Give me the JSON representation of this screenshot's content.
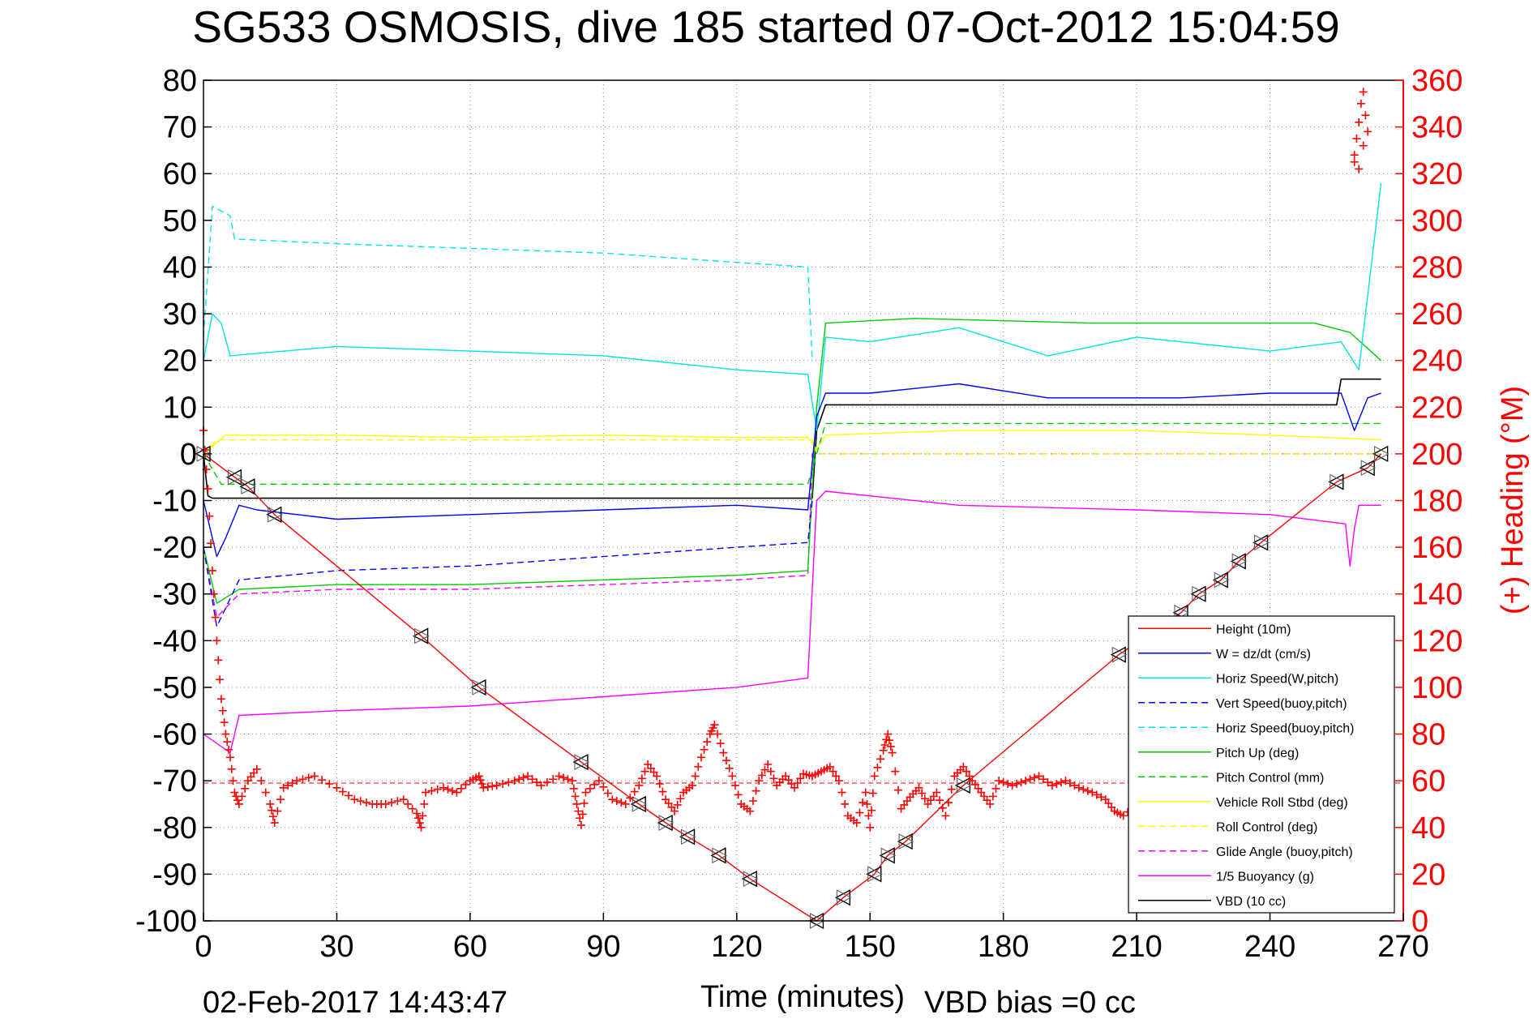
{
  "chart_data": {
    "type": "line",
    "title": "SG533 OSMOSIS, dive 185 started 07-Oct-2012 15:04:59",
    "xlabel": "Time (minutes)",
    "ylabel_right": "(+) Heading (°M)",
    "footer_date": "02-Feb-2017 14:43:47",
    "footer_bias": "VBD bias =0 cc",
    "xlim": [
      0,
      270
    ],
    "ylim": [
      -100,
      80
    ],
    "ylim_right": [
      0,
      360
    ],
    "x_ticks": [
      0,
      30,
      60,
      90,
      120,
      150,
      180,
      210,
      240,
      270
    ],
    "y_ticks": [
      80,
      70,
      60,
      50,
      40,
      30,
      20,
      10,
      0,
      -10,
      -20,
      -30,
      -40,
      -50,
      -60,
      -70,
      -80,
      -90,
      -100
    ],
    "y_ticks_right": [
      360,
      340,
      320,
      300,
      280,
      260,
      240,
      220,
      200,
      180,
      160,
      140,
      120,
      100,
      80,
      60,
      40,
      20,
      0
    ],
    "grid": true,
    "legend_position": "bottom-right",
    "series": [
      {
        "name": "Height (10m)",
        "color": "#ff0000",
        "style": "solid",
        "x": [
          0,
          7,
          10,
          16,
          49,
          62,
          85,
          98,
          104,
          109,
          116,
          123,
          138,
          144,
          151,
          154,
          158,
          171,
          206,
          220,
          224,
          229,
          233,
          238,
          255,
          262,
          265
        ],
        "y": [
          0,
          -5,
          -7,
          -13,
          -39,
          -50,
          -66,
          -75,
          -79,
          -82,
          -86,
          -91,
          -100,
          -95,
          -90,
          -86,
          -83,
          -71,
          -43,
          -34,
          -30,
          -27,
          -23,
          -19,
          -6,
          -3,
          0
        ]
      },
      {
        "name": "W = dz/dt (cm/s)",
        "color": "#0000ff",
        "style": "solid",
        "x": [
          0,
          3,
          5,
          8,
          12,
          30,
          60,
          90,
          120,
          136,
          138,
          140,
          150,
          170,
          190,
          220,
          240,
          256,
          259,
          262,
          265
        ],
        "y": [
          -10,
          -22,
          -18,
          -11,
          -12,
          -14,
          -13,
          -12,
          -11,
          -12,
          8,
          13,
          13,
          15,
          12,
          12,
          13,
          13,
          5,
          12,
          13
        ]
      },
      {
        "name": "Horiz Speed(W,pitch)",
        "color": "#00e5e5",
        "style": "solid",
        "x": [
          0,
          2,
          4,
          6,
          30,
          60,
          90,
          120,
          136,
          138,
          140,
          150,
          170,
          190,
          210,
          240,
          256,
          260,
          264,
          265
        ],
        "y": [
          20,
          30,
          28,
          21,
          23,
          22,
          21,
          18,
          17,
          5,
          25,
          24,
          27,
          21,
          25,
          22,
          24,
          18,
          50,
          58
        ]
      },
      {
        "name": "Vert Speed(buoy,pitch)",
        "color": "#0000ff",
        "style": "dashed",
        "x": [
          0,
          3,
          8,
          30,
          60,
          90,
          120,
          136,
          137
        ],
        "y": [
          -20,
          -37,
          -27,
          -25,
          -24,
          -22,
          -20,
          -19,
          -10
        ]
      },
      {
        "name": "Horiz Speed(buoy,pitch)",
        "color": "#00e5e5",
        "style": "dashed",
        "x": [
          0,
          2,
          6,
          7,
          30,
          60,
          90,
          120,
          136,
          137
        ],
        "y": [
          25,
          53,
          51,
          46,
          45,
          44,
          43,
          41,
          40,
          20
        ]
      },
      {
        "name": "Pitch Up (deg)",
        "color": "#00cc00",
        "style": "solid",
        "x": [
          0,
          3,
          8,
          30,
          60,
          90,
          120,
          136,
          138,
          140,
          160,
          200,
          250,
          258,
          265
        ],
        "y": [
          -20,
          -32,
          -29,
          -28,
          -28,
          -27,
          -26,
          -25,
          10,
          28,
          29,
          28,
          28,
          26,
          20
        ]
      },
      {
        "name": "Pitch Control (mm)",
        "color": "#00cc00",
        "style": "dashed",
        "x": [
          0,
          4,
          136,
          138,
          140,
          265
        ],
        "y": [
          0,
          -6.5,
          -6.5,
          0,
          6.5,
          6.5
        ]
      },
      {
        "name": "Vehicle Roll Stbd (deg)",
        "color": "#ffff00",
        "style": "solid",
        "x": [
          0,
          5,
          30,
          60,
          90,
          120,
          136,
          138,
          140,
          170,
          210,
          240,
          265
        ],
        "y": [
          0,
          4,
          4,
          3.5,
          4,
          3.5,
          3.5,
          1,
          4,
          5,
          5,
          4,
          3
        ]
      },
      {
        "name": "Roll Control (deg)",
        "color": "#ffff00",
        "style": "dashed",
        "x": [
          0,
          3,
          137,
          138,
          265
        ],
        "y": [
          0,
          3,
          3,
          0,
          0
        ]
      },
      {
        "name": "Glide Angle (buoy,pitch)",
        "color": "#ff00ff",
        "style": "dashed",
        "x": [
          0,
          3,
          8,
          30,
          60,
          90,
          120,
          136,
          137,
          265
        ],
        "y": [
          -20,
          -35,
          -30,
          -29,
          -29,
          -28,
          -27,
          -26,
          0,
          0
        ]
      },
      {
        "name": "1/5 Buoyancy (g)",
        "color": "#ff00ff",
        "style": "solid",
        "x": [
          0,
          6,
          8,
          30,
          60,
          90,
          120,
          136,
          138,
          140,
          170,
          210,
          240,
          257,
          258,
          259,
          260,
          265
        ],
        "y": [
          -60,
          -64,
          -56,
          -55,
          -54,
          -52,
          -50,
          -48,
          -10,
          -8,
          -11,
          -12,
          -13,
          -15,
          -24,
          -16,
          -11,
          -11
        ]
      },
      {
        "name": "VBD (10 cc)",
        "color": "#000000",
        "style": "solid",
        "x": [
          0,
          1,
          2,
          137,
          138,
          140,
          255,
          256,
          265
        ],
        "y": [
          0,
          -9,
          -9.5,
          -9.5,
          5,
          10.5,
          10.5,
          16,
          16
        ]
      }
    ],
    "heading": {
      "name": "(+) Heading",
      "color": "#ff0000",
      "mean": 59,
      "x": [
        0,
        1,
        2,
        3,
        4,
        5,
        6,
        7,
        8,
        10,
        12,
        15,
        16,
        18,
        21,
        25,
        30,
        34,
        38,
        41,
        45,
        48,
        49,
        50,
        54,
        57,
        60,
        62,
        63,
        66,
        70,
        73,
        76,
        80,
        83,
        84,
        85,
        86,
        89,
        92,
        95,
        98,
        100,
        102,
        104,
        106,
        108,
        110,
        112,
        114,
        115,
        117,
        119,
        121,
        123,
        125,
        127,
        129,
        131,
        133,
        135,
        137,
        139,
        141,
        143,
        145,
        147,
        149,
        150,
        151,
        153,
        154,
        155,
        157,
        159,
        161,
        163,
        165,
        167,
        169,
        171,
        173,
        175,
        177,
        179,
        182,
        185,
        188,
        191,
        194,
        197,
        200,
        203,
        205,
        207,
        210,
        212
      ],
      "y": [
        210,
        185,
        150,
        120,
        95,
        80,
        70,
        55,
        50,
        60,
        65,
        50,
        42,
        57,
        60,
        62,
        57,
        52,
        50,
        50,
        52,
        46,
        40,
        55,
        57,
        55,
        60,
        62,
        57,
        58,
        60,
        62,
        58,
        62,
        60,
        50,
        41,
        55,
        60,
        52,
        50,
        58,
        67,
        62,
        52,
        47,
        55,
        58,
        70,
        80,
        84,
        72,
        62,
        50,
        47,
        60,
        67,
        58,
        62,
        57,
        63,
        62,
        64,
        66,
        60,
        45,
        42,
        55,
        40,
        62,
        73,
        80,
        72,
        48,
        53,
        57,
        50,
        55,
        45,
        62,
        66,
        60,
        55,
        50,
        60,
        58,
        60,
        62,
        58,
        60,
        57,
        55,
        52,
        47,
        45,
        50,
        54
      ]
    },
    "heading_outliers": {
      "x": [
        259,
        259.5,
        260,
        260.5,
        261,
        261.5,
        262,
        259,
        260,
        261
      ],
      "y": [
        328,
        335,
        342,
        350,
        355,
        345,
        338,
        325,
        322,
        332
      ]
    }
  }
}
